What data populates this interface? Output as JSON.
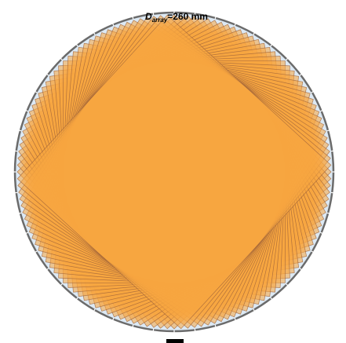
{
  "diagram": {
    "label": {
      "symbol": "D",
      "subscript": "array",
      "value_text": "=260 mm"
    },
    "square_count": 36,
    "colors": {
      "boundary_fill": "#dce9f4",
      "boundary_stroke": "#6b6b6b",
      "square_fill": "#f7a640",
      "square_stroke": "#a0643a",
      "tick_color": "#ffffff"
    }
  }
}
